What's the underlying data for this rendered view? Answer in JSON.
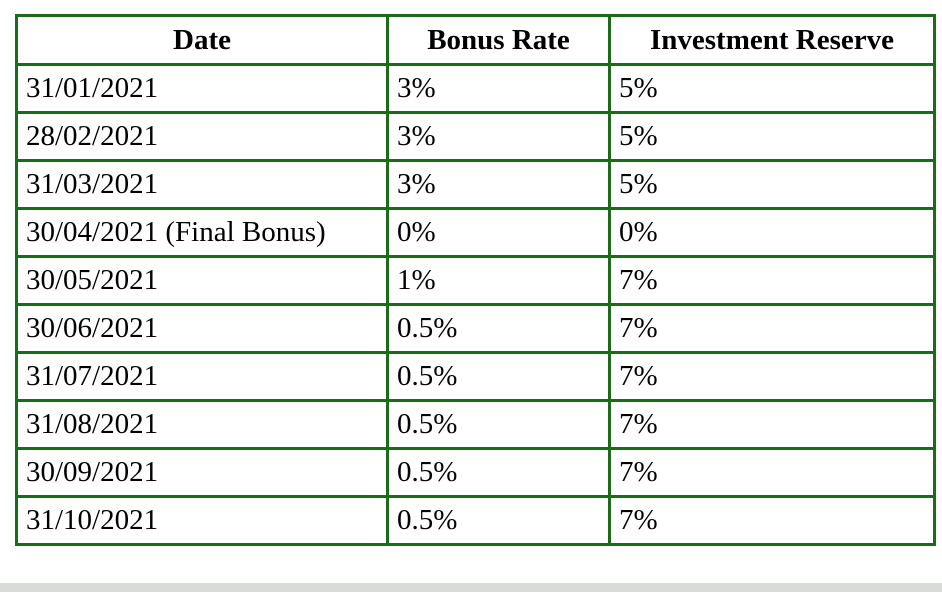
{
  "table": {
    "headers": [
      "Date",
      "Bonus Rate",
      "Investment Reserve"
    ],
    "rows": [
      [
        "31/01/2021",
        "3%",
        "5%"
      ],
      [
        "28/02/2021",
        "3%",
        "5%"
      ],
      [
        "31/03/2021",
        "3%",
        "5%"
      ],
      [
        "30/04/2021 (Final Bonus)",
        "0%",
        "0%"
      ],
      [
        "30/05/2021",
        "1%",
        "7%"
      ],
      [
        "30/06/2021",
        "0.5%",
        "7%"
      ],
      [
        "31/07/2021",
        "0.5%",
        "7%"
      ],
      [
        "31/08/2021",
        "0.5%",
        "7%"
      ],
      [
        "30/09/2021",
        "0.5%",
        "7%"
      ],
      [
        "31/10/2021",
        "0.5%",
        "7%"
      ]
    ]
  },
  "colors": {
    "border": "#1b6b1b",
    "text": "#000000",
    "background": "#ffffff"
  }
}
